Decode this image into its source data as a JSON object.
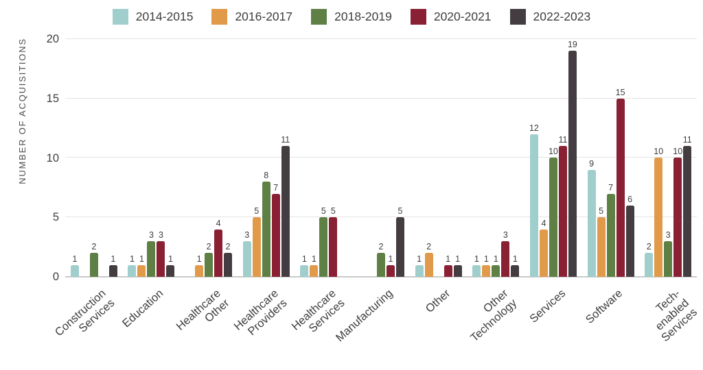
{
  "colors": {
    "background": "#ffffff",
    "grid": "#e4e4e4",
    "baseline": "#c9c9c9",
    "text": "#3d3d3d",
    "axis_title": "#4c4c4c"
  },
  "chart_data": {
    "type": "bar",
    "title": "",
    "xlabel": "",
    "ylabel": "NUMBER OF ACQUISITIONS",
    "ylim": [
      0,
      20
    ],
    "yticks": [
      0,
      5,
      10,
      15,
      20
    ],
    "grid": true,
    "legend_position": "top-center",
    "categories": [
      "Construction\nServices",
      "Education",
      "Healthcare\nOther",
      "Healthcare\nProviders",
      "Healthcare\nServices",
      "Manufacturing",
      "Other",
      "Other\nTechnology",
      "Services",
      "Software",
      "Tech-enabled\nServices"
    ],
    "series": [
      {
        "name": "2014-2015",
        "color": "#a0cecd",
        "values": [
          1,
          1,
          0,
          3,
          1,
          0,
          1,
          1,
          12,
          9,
          2
        ]
      },
      {
        "name": "2016-2017",
        "color": "#e19a4a",
        "values": [
          0,
          1,
          1,
          5,
          1,
          0,
          2,
          1,
          4,
          5,
          10
        ]
      },
      {
        "name": "2018-2019",
        "color": "#5e8045",
        "values": [
          2,
          3,
          2,
          8,
          5,
          2,
          0,
          1,
          10,
          7,
          3
        ]
      },
      {
        "name": "2020-2021",
        "color": "#8a2033",
        "values": [
          0,
          3,
          4,
          7,
          5,
          1,
          1,
          3,
          11,
          15,
          10
        ]
      },
      {
        "name": "2022-2023",
        "color": "#433d42",
        "values": [
          1,
          1,
          2,
          11,
          0,
          5,
          1,
          1,
          19,
          6,
          11
        ]
      }
    ]
  }
}
